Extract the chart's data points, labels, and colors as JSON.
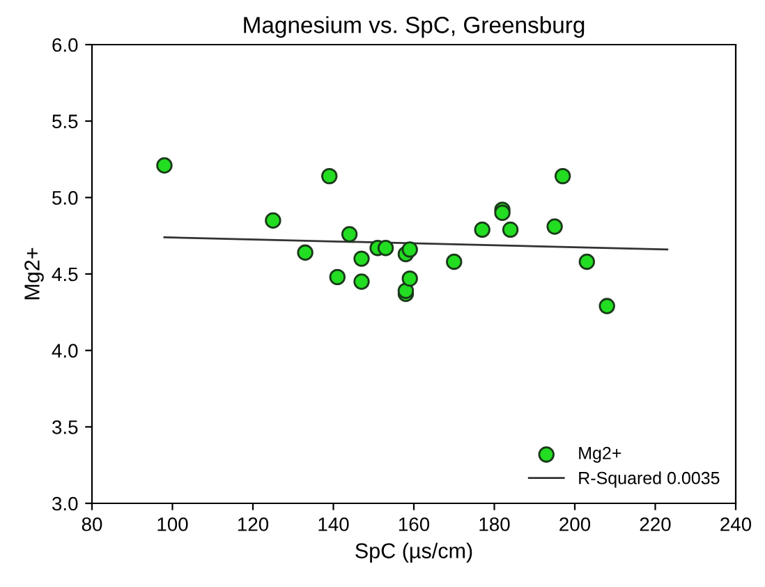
{
  "chart_data": {
    "type": "scatter",
    "title": "Magnesium vs. SpC, Greensburg",
    "xlabel": "SpC (µs/cm)",
    "ylabel": "Mg2+",
    "series": [
      {
        "name": "Mg2+",
        "color": "#22dd22",
        "marker": "circle",
        "x": [
          98,
          125,
          133,
          139,
          141,
          144,
          147,
          147,
          151,
          153,
          158,
          159,
          158,
          158,
          159,
          170,
          177,
          182,
          182,
          184,
          195,
          197,
          203,
          208
        ],
        "values": [
          5.21,
          4.85,
          4.64,
          5.14,
          4.48,
          4.76,
          4.6,
          4.45,
          4.67,
          4.67,
          4.63,
          4.66,
          4.37,
          4.39,
          4.47,
          4.58,
          4.79,
          4.92,
          4.9,
          4.79,
          4.81,
          5.14,
          4.58,
          4.29
        ]
      },
      {
        "name": "R-Squared 0.0035",
        "type": "line",
        "color": "#333333",
        "marker": "none",
        "x": [
          98,
          223
        ],
        "values": [
          4.74,
          4.66
        ]
      }
    ],
    "xlim": [
      80,
      240
    ],
    "xticks": [
      80,
      100,
      120,
      140,
      160,
      180,
      200,
      220,
      240
    ],
    "ylim": [
      3.0,
      6.0
    ],
    "yticks": [
      {
        "value": 3.0,
        "label": "3.0"
      },
      {
        "value": 3.5,
        "label": "3.5"
      },
      {
        "value": 4.0,
        "label": "4.0"
      },
      {
        "value": 4.5,
        "label": "4.5"
      },
      {
        "value": 5.0,
        "label": "5.0"
      },
      {
        "value": 5.5,
        "label": "5.5"
      },
      {
        "value": 6.0,
        "label": "6.0"
      }
    ],
    "grid": false,
    "legend": "bottom right"
  }
}
